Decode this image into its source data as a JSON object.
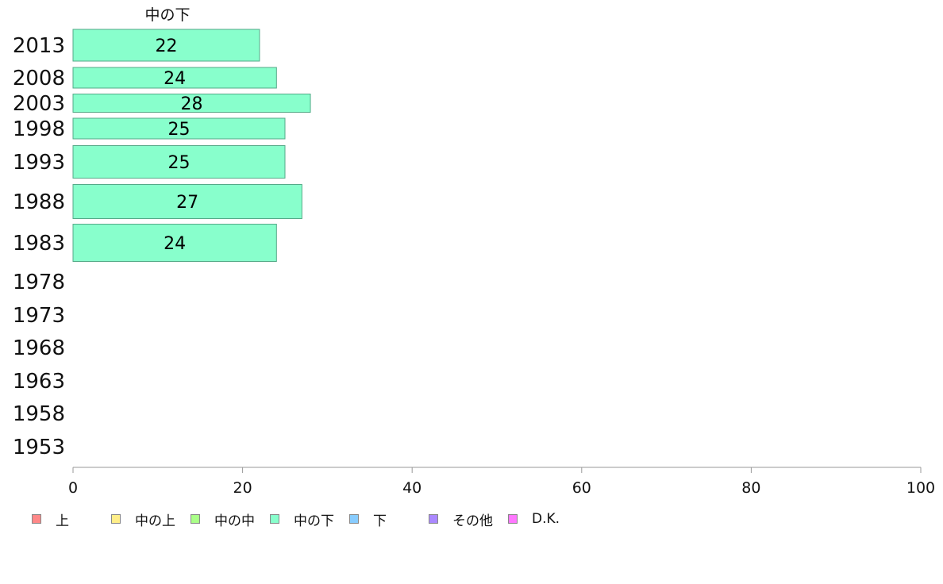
{
  "chart_data": {
    "type": "bar",
    "orientation": "horizontal",
    "title": "中の下",
    "categories": [
      "2013",
      "2008",
      "2003",
      "1998",
      "1993",
      "1988",
      "1983",
      "1978",
      "1973",
      "1968",
      "1963",
      "1958",
      "1953"
    ],
    "series": [
      {
        "name": "中の下",
        "values": [
          22,
          24,
          28,
          25,
          25,
          27,
          24,
          null,
          null,
          null,
          null,
          null,
          null
        ],
        "color": "#88ffcc"
      }
    ],
    "xlim": [
      0,
      100
    ],
    "xticks": [
      "0",
      "20",
      "40",
      "60",
      "80",
      "100"
    ],
    "grid": false,
    "legend_position": "bottom",
    "legend": [
      {
        "label": "上",
        "color": "#ff8888"
      },
      {
        "label": "中の上",
        "color": "#ffee88"
      },
      {
        "label": "中の中",
        "color": "#aaff88"
      },
      {
        "label": "中の下",
        "color": "#88ffcc"
      },
      {
        "label": "下",
        "color": "#88ccff"
      },
      {
        "label": "その他",
        "color": "#aa88ff"
      },
      {
        "label": "D.K.",
        "color": "#ff77ff"
      }
    ]
  }
}
